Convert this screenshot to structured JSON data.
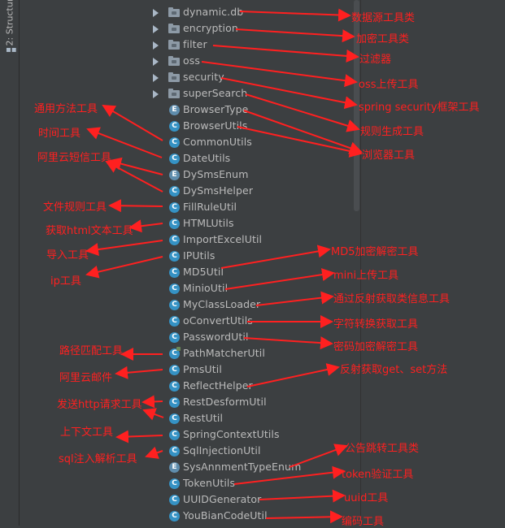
{
  "side_panel": {
    "tab_label": "2: Structure",
    "tab_icon": "structure-icon"
  },
  "tree": {
    "folders": [
      {
        "name": "dynamic.db",
        "icon": "folder-icon"
      },
      {
        "name": "encryption",
        "icon": "folder-icon"
      },
      {
        "name": "filter",
        "icon": "folder-icon"
      },
      {
        "name": "oss",
        "icon": "folder-icon"
      },
      {
        "name": "security",
        "icon": "folder-icon"
      },
      {
        "name": "superSearch",
        "icon": "folder-icon"
      }
    ],
    "classes": [
      {
        "name": "BrowserType",
        "kind": "E"
      },
      {
        "name": "BrowserUtils",
        "kind": "C"
      },
      {
        "name": "CommonUtils",
        "kind": "C"
      },
      {
        "name": "DateUtils",
        "kind": "C"
      },
      {
        "name": "DySmsEnum",
        "kind": "E"
      },
      {
        "name": "DySmsHelper",
        "kind": "C"
      },
      {
        "name": "FillRuleUtil",
        "kind": "C"
      },
      {
        "name": "HTMLUtils",
        "kind": "C"
      },
      {
        "name": "ImportExcelUtil",
        "kind": "C"
      },
      {
        "name": "IPUtils",
        "kind": "C"
      },
      {
        "name": "MD5Util",
        "kind": "C"
      },
      {
        "name": "MinioUtil",
        "kind": "C"
      },
      {
        "name": "MyClassLoader",
        "kind": "C"
      },
      {
        "name": "oConvertUtils",
        "kind": "C"
      },
      {
        "name": "PasswordUtil",
        "kind": "C"
      },
      {
        "name": "PathMatcherUtil",
        "kind": "C"
      },
      {
        "name": "PmsUtil",
        "kind": "C"
      },
      {
        "name": "ReflectHelper",
        "kind": "C"
      },
      {
        "name": "RestDesformUtil",
        "kind": "C"
      },
      {
        "name": "RestUtil",
        "kind": "C"
      },
      {
        "name": "SpringContextUtils",
        "kind": "C"
      },
      {
        "name": "SqlInjectionUtil",
        "kind": "C"
      },
      {
        "name": "SysAnnmentTypeEnum",
        "kind": "E"
      },
      {
        "name": "TokenUtils",
        "kind": "C"
      },
      {
        "name": "UUIDGenerator",
        "kind": "C"
      },
      {
        "name": "YouBianCodeUtil",
        "kind": "C"
      }
    ]
  },
  "annotations": {
    "right": [
      "数据源工具类",
      "加密工具类",
      "过滤器",
      "oss上传工具",
      "spring security框架工具",
      "规则生成工具",
      "浏览器工具",
      "MD5加密解密工具",
      "mini上传工具",
      "通过反射获取类信息工具",
      "字符转换获取工具",
      "密码加密解密工具",
      "反射获取get、set方法",
      "公告跳转工具类",
      "token验证工具",
      "uuid工具",
      "编码工具"
    ],
    "left": [
      "通用方法工具",
      "时间工具",
      "阿里云短信工具",
      "文件规则工具",
      "获取html文本工具",
      "导入工具",
      "ip工具",
      "路径匹配工具",
      "阿里云邮件",
      "发送http请求工具",
      "上下文工具",
      "sql注入解析工具"
    ]
  },
  "colors": {
    "annotation": "#ff2020",
    "background": "#3c3f41",
    "text": "#bbbbbb",
    "class_icon": "#3592c4"
  }
}
